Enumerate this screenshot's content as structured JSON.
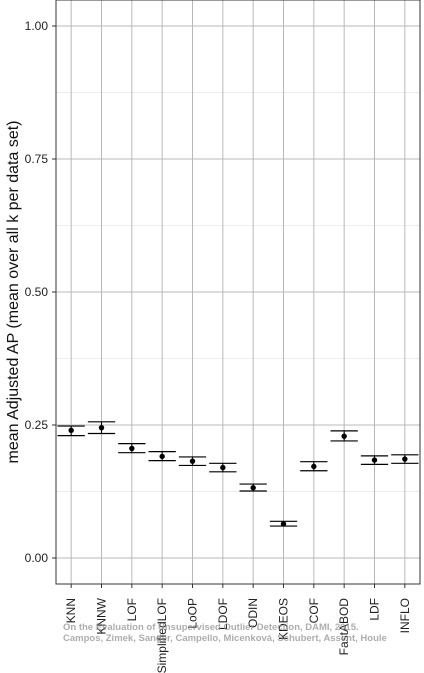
{
  "chart_data": {
    "type": "scatter",
    "title": "",
    "xlabel": "",
    "ylabel": "mean Adjusted AP (mean over all k per data set)",
    "ylim": [
      0,
      1.05
    ],
    "yticks": [
      "0.00",
      "0.25",
      "0.50",
      "0.75",
      "1.00"
    ],
    "categories": [
      "KNN",
      "KNNW",
      "LOF",
      "SimplifiedLOF",
      "LoOP",
      "LDOF",
      "ODIN",
      "KDEOS",
      "COF",
      "FastABOD",
      "LDF",
      "INFLO"
    ],
    "series": [
      {
        "values": [
          0.24,
          0.245,
          0.206,
          0.191,
          0.182,
          0.17,
          0.132,
          0.064,
          0.172,
          0.229,
          0.184,
          0.186
        ],
        "error_lower": [
          0.23,
          0.234,
          0.198,
          0.183,
          0.174,
          0.162,
          0.126,
          0.06,
          0.164,
          0.22,
          0.176,
          0.178
        ],
        "error_upper": [
          0.248,
          0.256,
          0.215,
          0.2,
          0.19,
          0.178,
          0.139,
          0.069,
          0.181,
          0.239,
          0.192,
          0.194
        ]
      }
    ],
    "grid": true,
    "legend": "none",
    "colors": {
      "mark": "#000000",
      "panel_border": "#333333",
      "major_grid": "#b8b8b8",
      "minor_grid": "#e7e7e7",
      "background": "#ffffff"
    },
    "annotations": [
      "On the Evaluation of Unsupervised Outlier Detection, DAMI, 2015.",
      "Campos, Zimek, Sander, Campello, Micenková, Schubert, Assent, Houle"
    ]
  }
}
